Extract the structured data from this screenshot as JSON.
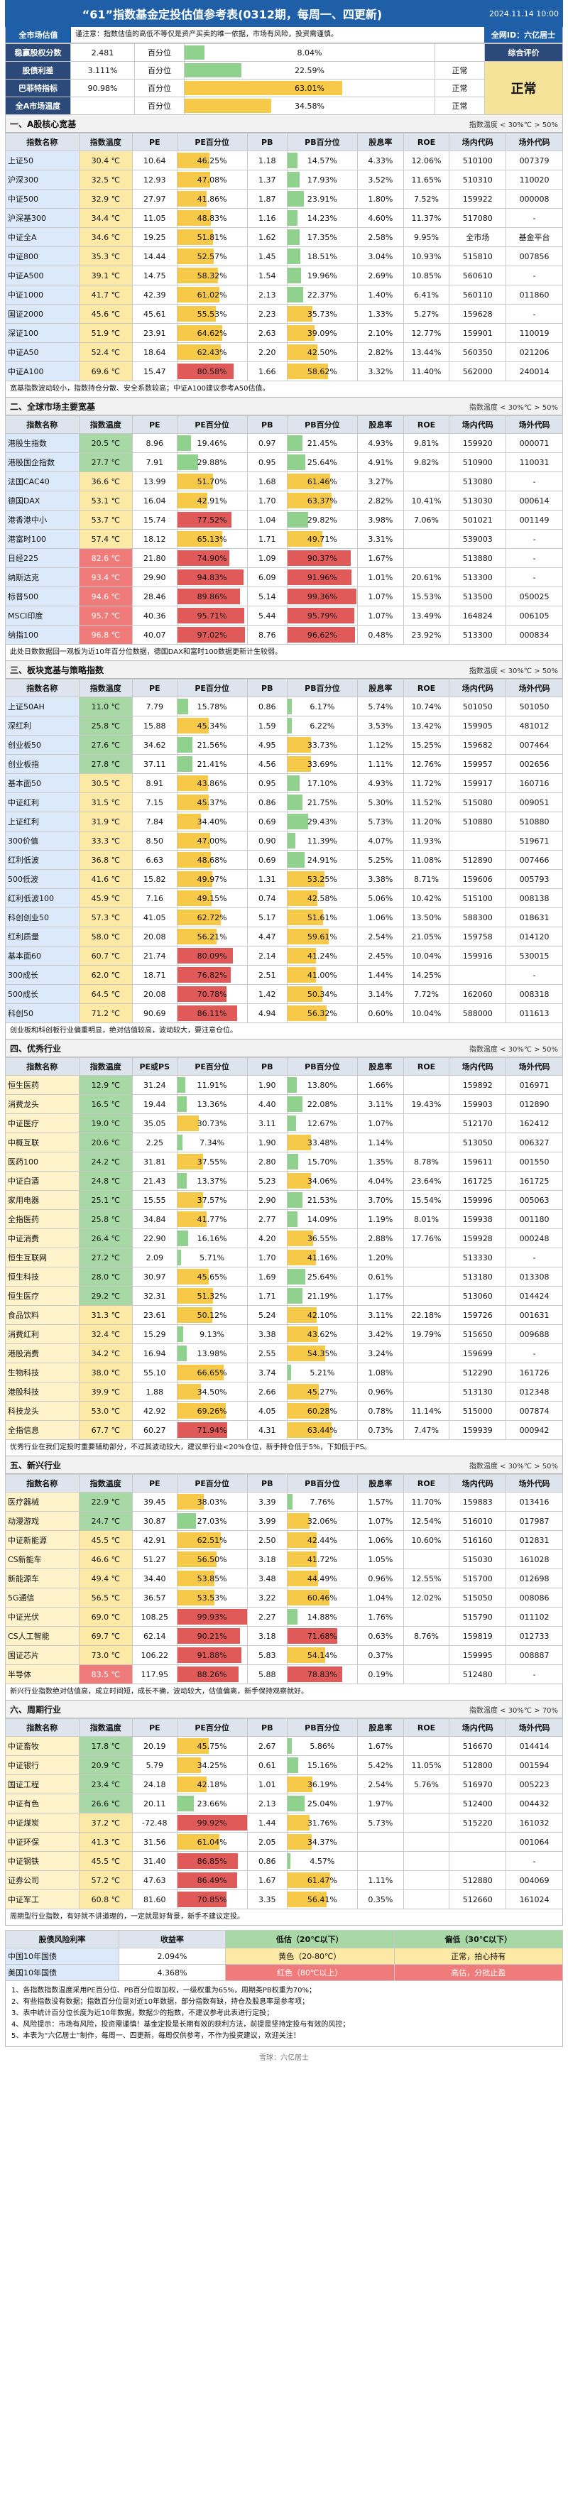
{
  "header": {
    "title": "“61”指数基金定投估值参考表(0312期，每周一、四更新)",
    "date": "2024.11.14 10:00"
  },
  "intro": {
    "left": "全市场估值",
    "text": "谨注意：指数估值的高低不等仅是资产买卖的唯一依据，市场有风险，投资需谨慎。",
    "right": "全网ID：六亿居士"
  },
  "summary": {
    "rows": [
      {
        "k": "稳赢股权分数",
        "v": "2.481",
        "p": "百分位",
        "pv": "8.04%",
        "s": ""
      },
      {
        "k": "股债利差",
        "v": "3.111%",
        "p": "百分位",
        "pv": "22.59%",
        "s": "正常"
      },
      {
        "k": "巴菲特指标",
        "v": "90.98%",
        "p": "百分位",
        "pv": "63.01%",
        "s": "正常"
      },
      {
        "k": "全A市场温度",
        "v": "",
        "p": "百分位",
        "pv": "34.58%",
        "s": "正常"
      }
    ],
    "right_label": "综合评价",
    "right_value": "正常",
    "legend": "指数温度：< 30%℃ > 50%"
  },
  "columns": [
    "指数名称",
    "指数温度",
    "PE",
    "PE百分位",
    "PB",
    "PB百分位",
    "股息率",
    "ROE",
    "场内代码",
    "场外代码"
  ],
  "columns_pepb": [
    "指数名称",
    "指数温度",
    "PE或PS",
    "PE百分位",
    "PB",
    "PB百分位",
    "股息率",
    "ROE",
    "场内代码",
    "场外代码"
  ],
  "sections": [
    {
      "title": "一、A股核心宽基",
      "legend": "指数温度 < 30%℃ > 50%",
      "rows": [
        [
          "上证50",
          "30.4 ℃",
          "10.64",
          "46.25%",
          "1.18",
          "14.57%",
          "4.33%",
          "12.06%",
          "510100",
          "007379"
        ],
        [
          "沪深300",
          "32.5 ℃",
          "12.93",
          "47.08%",
          "1.37",
          "17.93%",
          "3.52%",
          "11.65%",
          "510310",
          "110020"
        ],
        [
          "中证500",
          "32.9 ℃",
          "27.97",
          "41.86%",
          "1.87",
          "23.91%",
          "1.80%",
          "7.52%",
          "159922",
          "000008"
        ],
        [
          "沪深基300",
          "34.4 ℃",
          "11.05",
          "48.83%",
          "1.16",
          "14.23%",
          "4.60%",
          "11.37%",
          "517080",
          "-"
        ],
        [
          "中证全A",
          "34.6 ℃",
          "19.25",
          "51.81%",
          "1.62",
          "17.35%",
          "2.58%",
          "9.95%",
          "全市场",
          "基金平台"
        ],
        [
          "中证800",
          "35.3 ℃",
          "14.44",
          "52.57%",
          "1.45",
          "18.51%",
          "3.04%",
          "10.93%",
          "515810",
          "007856"
        ],
        [
          "中证A500",
          "39.1 ℃",
          "14.75",
          "58.32%",
          "1.54",
          "19.96%",
          "2.69%",
          "10.85%",
          "560610",
          "-"
        ],
        [
          "中证1000",
          "41.7 ℃",
          "42.39",
          "61.02%",
          "2.13",
          "22.37%",
          "1.40%",
          "6.41%",
          "560110",
          "011860"
        ],
        [
          "国证2000",
          "45.6 ℃",
          "45.61",
          "55.53%",
          "2.23",
          "35.73%",
          "1.33%",
          "5.27%",
          "159628",
          "-"
        ],
        [
          "深证100",
          "51.9 ℃",
          "23.91",
          "64.62%",
          "2.63",
          "39.09%",
          "2.10%",
          "12.77%",
          "159901",
          "110019"
        ],
        [
          "中证A50",
          "52.4 ℃",
          "18.64",
          "62.43%",
          "2.20",
          "42.50%",
          "2.82%",
          "13.44%",
          "560350",
          "021206"
        ],
        [
          "中证A100",
          "69.6 ℃",
          "15.47",
          "80.58%",
          "1.66",
          "58.62%",
          "3.32%",
          "11.40%",
          "562000",
          "240014"
        ]
      ],
      "note": "宽基指数波动较小，指数持仓分散、安全系数较高；中证A100建议参考A50估值。"
    },
    {
      "title": "二、全球市场主要宽基",
      "legend": "指数温度 < 30%℃ > 50%",
      "rows": [
        [
          "港股生指数",
          "20.5 ℃",
          "8.96",
          "19.46%",
          "0.97",
          "21.45%",
          "4.93%",
          "9.81%",
          "159920",
          "000071"
        ],
        [
          "港股国企指数",
          "27.7 ℃",
          "7.91",
          "29.88%",
          "0.95",
          "25.64%",
          "4.91%",
          "9.82%",
          "510900",
          "110031"
        ],
        [
          "法国CAC40",
          "36.6 ℃",
          "13.99",
          "51.70%",
          "1.68",
          "61.46%",
          "3.27%",
          "",
          "513080",
          "-"
        ],
        [
          "德国DAX",
          "53.1 ℃",
          "16.04",
          "42.91%",
          "1.70",
          "63.37%",
          "2.82%",
          "10.41%",
          "513030",
          "000614"
        ],
        [
          "港香港中小",
          "53.7 ℃",
          "15.74",
          "77.52%",
          "1.04",
          "29.82%",
          "3.98%",
          "7.06%",
          "501021",
          "001149"
        ],
        [
          "港富时100",
          "57.4 ℃",
          "18.12",
          "65.13%",
          "1.71",
          "49.71%",
          "3.31%",
          "",
          "539003",
          "-"
        ],
        [
          "日经225",
          "82.6 ℃",
          "21.80",
          "74.90%",
          "1.09",
          "90.37%",
          "1.67%",
          "",
          "513880",
          "-"
        ],
        [
          "纳斯达克",
          "93.4 ℃",
          "29.90",
          "94.83%",
          "6.09",
          "91.96%",
          "1.01%",
          "20.61%",
          "513300",
          "-"
        ],
        [
          "标普500",
          "94.6 ℃",
          "28.46",
          "89.86%",
          "5.14",
          "99.36%",
          "1.07%",
          "15.53%",
          "513500",
          "050025"
        ],
        [
          "MSCI印度",
          "95.7 ℃",
          "40.36",
          "95.71%",
          "5.44",
          "95.79%",
          "1.07%",
          "13.49%",
          "164824",
          "006105"
        ],
        [
          "纳指100",
          "96.8 ℃",
          "40.07",
          "97.02%",
          "8.76",
          "96.62%",
          "0.48%",
          "23.92%",
          "513300",
          "000834"
        ]
      ],
      "note": "此处日数数据回一观板为近10年百分位数据，德国DAX和富时100数据更新计生较弱。"
    },
    {
      "title": "三、板块宽基与策略指数",
      "legend": "指数温度 < 30%℃ > 50%",
      "rows": [
        [
          "上证50AH",
          "11.0 ℃",
          "7.79",
          "15.78%",
          "0.86",
          "6.17%",
          "5.74%",
          "10.74%",
          "501050",
          "501050"
        ],
        [
          "深红利",
          "25.8 ℃",
          "15.88",
          "45.34%",
          "1.59",
          "6.22%",
          "3.53%",
          "13.42%",
          "159905",
          "481012"
        ],
        [
          "创业板50",
          "27.6 ℃",
          "34.62",
          "21.56%",
          "4.95",
          "33.73%",
          "1.12%",
          "15.25%",
          "159682",
          "007464"
        ],
        [
          "创业板指",
          "27.8 ℃",
          "37.11",
          "21.41%",
          "4.56",
          "33.69%",
          "1.11%",
          "12.76%",
          "159957",
          "002656"
        ],
        [
          "基本面50",
          "30.5 ℃",
          "8.91",
          "43.86%",
          "0.95",
          "17.10%",
          "4.93%",
          "11.72%",
          "159917",
          "160716"
        ],
        [
          "中证红利",
          "31.5 ℃",
          "7.15",
          "45.37%",
          "0.86",
          "21.75%",
          "5.30%",
          "11.52%",
          "515080",
          "009051"
        ],
        [
          "上证红利",
          "31.9 ℃",
          "7.84",
          "34.40%",
          "0.69",
          "29.43%",
          "5.73%",
          "11.20%",
          "510880",
          "510880"
        ],
        [
          "300价值",
          "33.3 ℃",
          "8.50",
          "47.00%",
          "0.90",
          "11.39%",
          "4.07%",
          "11.93%",
          "",
          "519671"
        ],
        [
          "红利低波",
          "36.8 ℃",
          "6.63",
          "48.68%",
          "0.69",
          "24.91%",
          "5.25%",
          "11.08%",
          "512890",
          "007466"
        ],
        [
          "500低波",
          "41.6 ℃",
          "15.82",
          "49.97%",
          "1.31",
          "53.25%",
          "3.38%",
          "8.71%",
          "159606",
          "005793"
        ],
        [
          "红利低波100",
          "45.9 ℃",
          "7.16",
          "49.15%",
          "0.74",
          "42.58%",
          "5.06%",
          "10.42%",
          "515100",
          "008138"
        ],
        [
          "科创创业50",
          "57.3 ℃",
          "41.05",
          "62.72%",
          "5.17",
          "51.61%",
          "1.06%",
          "13.50%",
          "588300",
          "018631"
        ],
        [
          "红利质量",
          "58.0 ℃",
          "20.08",
          "56.21%",
          "4.47",
          "59.61%",
          "2.54%",
          "21.05%",
          "159758",
          "014120"
        ],
        [
          "基本面60",
          "60.7 ℃",
          "21.74",
          "80.09%",
          "2.14",
          "41.24%",
          "2.45%",
          "10.04%",
          "159916",
          "530015"
        ],
        [
          "300成长",
          "62.0 ℃",
          "18.71",
          "76.82%",
          "2.51",
          "41.00%",
          "1.44%",
          "14.25%",
          "",
          "-"
        ],
        [
          "500成长",
          "64.5 ℃",
          "20.08",
          "70.78%",
          "1.42",
          "50.34%",
          "3.14%",
          "7.72%",
          "162060",
          "008318"
        ],
        [
          "科创50",
          "71.2 ℃",
          "90.69",
          "86.11%",
          "4.94",
          "56.32%",
          "0.60%",
          "10.04%",
          "588000",
          "011613"
        ]
      ],
      "note": "创业板和科创板行业偏重明显，绝对估值较高，波动较大，要注意仓位。"
    },
    {
      "title": "四、优秀行业",
      "legend": "指数温度 < 30%℃ > 50%",
      "pe_label": "PE或PS",
      "rows": [
        [
          "恒生医药",
          "12.9 ℃",
          "31.24",
          "11.91%",
          "1.90",
          "13.80%",
          "1.66%",
          "",
          "159892",
          "016971"
        ],
        [
          "消费龙头",
          "16.5 ℃",
          "19.44",
          "13.36%",
          "4.40",
          "22.08%",
          "3.11%",
          "19.43%",
          "159903",
          "012890"
        ],
        [
          "中证医疗",
          "19.0 ℃",
          "35.05",
          "30.73%",
          "3.11",
          "12.67%",
          "1.07%",
          "",
          "512170",
          "162412"
        ],
        [
          "中概互联",
          "20.6 ℃",
          "2.25",
          "7.34%",
          "1.90",
          "33.48%",
          "1.14%",
          "",
          "513050",
          "006327"
        ],
        [
          "医药100",
          "24.2 ℃",
          "31.81",
          "37.55%",
          "2.80",
          "15.70%",
          "1.35%",
          "8.78%",
          "159611",
          "001550"
        ],
        [
          "中证白酒",
          "24.8 ℃",
          "21.43",
          "13.37%",
          "5.23",
          "34.06%",
          "4.04%",
          "23.64%",
          "161725",
          "161725"
        ],
        [
          "家用电器",
          "25.1 ℃",
          "15.55",
          "37.57%",
          "2.90",
          "21.53%",
          "3.70%",
          "15.54%",
          "159996",
          "005063"
        ],
        [
          "全指医药",
          "25.8 ℃",
          "34.84",
          "41.77%",
          "2.77",
          "14.09%",
          "1.19%",
          "8.01%",
          "159938",
          "001180"
        ],
        [
          "中证消费",
          "26.4 ℃",
          "22.90",
          "16.16%",
          "4.20",
          "36.55%",
          "2.88%",
          "17.76%",
          "159928",
          "000248"
        ],
        [
          "恒生互联网",
          "27.2 ℃",
          "2.09",
          "5.71%",
          "1.70",
          "41.16%",
          "1.20%",
          "",
          "513330",
          "-"
        ],
        [
          "恒生科技",
          "28.0 ℃",
          "30.97",
          "45.65%",
          "1.69",
          "25.64%",
          "0.61%",
          "",
          "513180",
          "013308"
        ],
        [
          "恒生医疗",
          "29.2 ℃",
          "32.31",
          "51.32%",
          "1.71",
          "21.19%",
          "1.17%",
          "",
          "513060",
          "014424"
        ],
        [
          "食品饮料",
          "31.3 ℃",
          "23.61",
          "50.12%",
          "5.24",
          "42.10%",
          "3.11%",
          "22.18%",
          "159726",
          "001631"
        ],
        [
          "消费红利",
          "32.4 ℃",
          "15.29",
          "9.13%",
          "3.38",
          "43.62%",
          "3.42%",
          "19.79%",
          "515650",
          "009688"
        ],
        [
          "港股消费",
          "34.2 ℃",
          "16.94",
          "13.98%",
          "2.55",
          "54.35%",
          "3.24%",
          "",
          "159699",
          "-"
        ],
        [
          "生物科技",
          "38.0 ℃",
          "55.10",
          "66.65%",
          "3.74",
          "5.21%",
          "1.08%",
          "",
          "512290",
          "161726"
        ],
        [
          "港股科技",
          "39.9 ℃",
          "1.88",
          "34.50%",
          "2.66",
          "45.27%",
          "0.96%",
          "",
          "513130",
          "012348"
        ],
        [
          "科技龙头",
          "53.0 ℃",
          "42.92",
          "69.26%",
          "4.05",
          "60.28%",
          "0.78%",
          "11.14%",
          "515000",
          "007874"
        ],
        [
          "全指信息",
          "67.7 ℃",
          "60.27",
          "71.94%",
          "4.31",
          "63.44%",
          "0.73%",
          "7.47%",
          "159939",
          "000942"
        ]
      ],
      "note": "优秀行业在我们定投时重要辅助部分，不过其波动较大，建议单行业<20%仓位，新手持仓低于5%，下如低于PS。"
    },
    {
      "title": "五、新兴行业",
      "legend": "指数温度 < 30%℃ > 50%",
      "rows": [
        [
          "医疗器械",
          "22.9 ℃",
          "39.45",
          "38.03%",
          "3.39",
          "7.76%",
          "1.57%",
          "11.70%",
          "159883",
          "013416"
        ],
        [
          "动漫游戏",
          "24.7 ℃",
          "30.87",
          "27.03%",
          "3.99",
          "32.06%",
          "1.07%",
          "12.54%",
          "516010",
          "017987"
        ],
        [
          "中证新能源",
          "45.5 ℃",
          "42.91",
          "62.51%",
          "2.50",
          "42.44%",
          "1.06%",
          "10.60%",
          "516160",
          "012831"
        ],
        [
          "CS新能车",
          "46.6 ℃",
          "51.27",
          "56.50%",
          "3.18",
          "41.72%",
          "1.05%",
          "",
          "515030",
          "161028"
        ],
        [
          "新能源车",
          "49.4 ℃",
          "34.40",
          "53.85%",
          "3.48",
          "44.49%",
          "0.96%",
          "12.55%",
          "515700",
          "012698"
        ],
        [
          "5G通信",
          "56.5 ℃",
          "36.57",
          "53.53%",
          "3.22",
          "60.46%",
          "1.04%",
          "12.02%",
          "515050",
          "008086"
        ],
        [
          "中证光伏",
          "69.0 ℃",
          "108.25",
          "99.93%",
          "2.27",
          "14.88%",
          "1.76%",
          "",
          "515790",
          "011102"
        ],
        [
          "CS人工智能",
          "69.7 ℃",
          "62.14",
          "90.21%",
          "3.18",
          "71.68%",
          "0.63%",
          "8.76%",
          "159819",
          "012733"
        ],
        [
          "国证芯片",
          "73.0 ℃",
          "106.22",
          "91.88%",
          "5.83",
          "54.14%",
          "0.37%",
          "",
          "159995",
          "008887"
        ],
        [
          "半导体",
          "83.5 ℃",
          "117.95",
          "88.26%",
          "5.88",
          "78.83%",
          "0.19%",
          "",
          "512480",
          "-"
        ]
      ],
      "note": "新兴行业指数绝对估值高，成立时间短，成长不确，波动较大，估值偏离，新手保持观察就好。"
    },
    {
      "title": "六、周期行业",
      "legend": "指数温度 < 30%℃ > 70%",
      "rows": [
        [
          "中证畜牧",
          "17.8 ℃",
          "20.19",
          "45.75%",
          "2.67",
          "5.86%",
          "1.67%",
          "",
          "516670",
          "014414"
        ],
        [
          "中证银行",
          "20.9 ℃",
          "5.79",
          "34.25%",
          "0.61",
          "15.16%",
          "5.42%",
          "11.05%",
          "512800",
          "001594"
        ],
        [
          "国证工程",
          "23.4 ℃",
          "24.18",
          "42.18%",
          "1.01",
          "36.19%",
          "2.54%",
          "5.76%",
          "516970",
          "005223"
        ],
        [
          "中证有色",
          "26.6 ℃",
          "20.11",
          "23.66%",
          "2.13",
          "25.04%",
          "1.97%",
          "",
          "512400",
          "004432"
        ],
        [
          "中证煤炭",
          "37.2 ℃",
          "-72.48",
          "99.92%",
          "1.44",
          "31.76%",
          "5.73%",
          "",
          "515220",
          "161032"
        ],
        [
          "中证环保",
          "41.3 ℃",
          "31.56",
          "61.04%",
          "2.05",
          "34.37%",
          "",
          "",
          "",
          "001064"
        ],
        [
          "中证钢铁",
          "45.5 ℃",
          "31.40",
          "86.85%",
          "0.86",
          "4.57%",
          "",
          "",
          "",
          "-"
        ],
        [
          "证券公司",
          "57.2 ℃",
          "47.63",
          "86.49%",
          "1.67",
          "61.47%",
          "1.11%",
          "",
          "512880",
          "004069"
        ],
        [
          "中证军工",
          "60.8 ℃",
          "81.60",
          "70.85%",
          "3.35",
          "56.41%",
          "0.35%",
          "",
          "512660",
          "161024"
        ]
      ],
      "note": "周期型行业指数，有好就不讲道理的，一定就是好背景，新手不建议定投。"
    }
  ],
  "bottom": {
    "header": [
      "股债风险利率",
      "收益率",
      "低估（20℃以下）",
      "",
      "偏低（30℃以下）"
    ],
    "row1": [
      "中国10年国债",
      "2.094%",
      "黄色（20-80℃）",
      "正常，拍心持有"
    ],
    "row2": [
      "美国10年国债",
      "4.368%",
      "红色（80℃以上）",
      "高估，分批止盈"
    ]
  },
  "footer_notes": [
    "1、各指数指数温度采用PE百分位、PB百分位取加权，一级权重为65%，周期类PB权重为70%；",
    "2、有些指数没有数据；指数百分位是对近10年数据，部分指数有缺，持仓及股息率是参考项；",
    "3、表中统计百分位长度为近10年数据，数据少的指数，不建议参考此表进行定投；",
    "4、风险提示：市场有风险，投资需谨慎！基金定投是长期有效的获利方法，前提是坚持定投与有效的风控；",
    "5、本表为“六亿居士”制作，每周一、四更新，每周仅供参考，不作为投资建议，欢迎关注！"
  ],
  "footer": "雪球：六亿居士"
}
